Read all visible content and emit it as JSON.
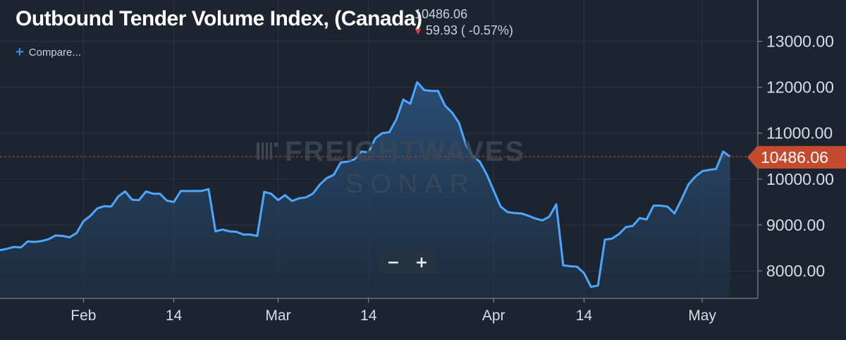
{
  "header": {
    "title": "Outbound Tender Volume Index, (Canada)",
    "price": "10486.06",
    "change": "59.93 ( -0.57%)",
    "change_direction_icon": "down-arrow-icon",
    "change_color": "#e04040"
  },
  "compare": {
    "icon": "plus-icon",
    "label": "Compare..."
  },
  "zoom": {
    "minus_label": "−",
    "plus_label": "+"
  },
  "watermark": {
    "line1": "FREIGHTWAVES",
    "line2": "SONAR"
  },
  "colors": {
    "line": "#4da6ff",
    "background": "#1c252f",
    "price_tag": "#c44a2f",
    "reference_line": "#c44a2f"
  },
  "chart_data": {
    "type": "area",
    "title": "Outbound Tender Volume Index, (Canada)",
    "x_tick_labels": [
      "Feb",
      "14",
      "Mar",
      "14",
      "Apr",
      "14",
      "May"
    ],
    "y_tick_labels": [
      "8000.00",
      "9000.00",
      "10000.00",
      "11000.00",
      "12000.00",
      "13000.00"
    ],
    "y_ticks": [
      8000,
      9000,
      10000,
      11000,
      12000,
      13000
    ],
    "ylim": [
      7400,
      13900
    ],
    "x_range": [
      "2019-01-20",
      "2019-05-09"
    ],
    "last_value": 10486.06,
    "last_value_label": "10486.06",
    "grid": true,
    "series": [
      {
        "values": [
          {
            "x": "2019-01-20",
            "y": 8450
          },
          {
            "x": "2019-01-21",
            "y": 8480
          },
          {
            "x": "2019-01-22",
            "y": 8520
          },
          {
            "x": "2019-01-23",
            "y": 8510
          },
          {
            "x": "2019-01-24",
            "y": 8640
          },
          {
            "x": "2019-01-25",
            "y": 8630
          },
          {
            "x": "2019-01-26",
            "y": 8650
          },
          {
            "x": "2019-01-27",
            "y": 8690
          },
          {
            "x": "2019-01-28",
            "y": 8770
          },
          {
            "x": "2019-01-29",
            "y": 8760
          },
          {
            "x": "2019-01-30",
            "y": 8730
          },
          {
            "x": "2019-01-31",
            "y": 8820
          },
          {
            "x": "2019-02-01",
            "y": 9080
          },
          {
            "x": "2019-02-02",
            "y": 9200
          },
          {
            "x": "2019-02-03",
            "y": 9360
          },
          {
            "x": "2019-02-04",
            "y": 9410
          },
          {
            "x": "2019-02-05",
            "y": 9400
          },
          {
            "x": "2019-02-06",
            "y": 9620
          },
          {
            "x": "2019-02-07",
            "y": 9730
          },
          {
            "x": "2019-02-08",
            "y": 9550
          },
          {
            "x": "2019-02-09",
            "y": 9540
          },
          {
            "x": "2019-02-10",
            "y": 9730
          },
          {
            "x": "2019-02-11",
            "y": 9680
          },
          {
            "x": "2019-02-12",
            "y": 9680
          },
          {
            "x": "2019-02-13",
            "y": 9530
          },
          {
            "x": "2019-02-14",
            "y": 9500
          },
          {
            "x": "2019-02-15",
            "y": 9740
          },
          {
            "x": "2019-02-16",
            "y": 9740
          },
          {
            "x": "2019-02-17",
            "y": 9740
          },
          {
            "x": "2019-02-18",
            "y": 9740
          },
          {
            "x": "2019-02-19",
            "y": 9780
          },
          {
            "x": "2019-02-20",
            "y": 8860
          },
          {
            "x": "2019-02-21",
            "y": 8900
          },
          {
            "x": "2019-02-22",
            "y": 8860
          },
          {
            "x": "2019-02-23",
            "y": 8850
          },
          {
            "x": "2019-02-24",
            "y": 8790
          },
          {
            "x": "2019-02-25",
            "y": 8790
          },
          {
            "x": "2019-02-26",
            "y": 8760
          },
          {
            "x": "2019-02-27",
            "y": 9720
          },
          {
            "x": "2019-02-28",
            "y": 9680
          },
          {
            "x": "2019-03-01",
            "y": 9540
          },
          {
            "x": "2019-03-02",
            "y": 9650
          },
          {
            "x": "2019-03-03",
            "y": 9520
          },
          {
            "x": "2019-03-04",
            "y": 9580
          },
          {
            "x": "2019-03-05",
            "y": 9600
          },
          {
            "x": "2019-03-06",
            "y": 9680
          },
          {
            "x": "2019-03-07",
            "y": 9880
          },
          {
            "x": "2019-03-08",
            "y": 10020
          },
          {
            "x": "2019-03-09",
            "y": 10090
          },
          {
            "x": "2019-03-10",
            "y": 10360
          },
          {
            "x": "2019-03-11",
            "y": 10380
          },
          {
            "x": "2019-03-12",
            "y": 10430
          },
          {
            "x": "2019-03-13",
            "y": 10600
          },
          {
            "x": "2019-03-14",
            "y": 10580
          },
          {
            "x": "2019-03-15",
            "y": 10890
          },
          {
            "x": "2019-03-16",
            "y": 11000
          },
          {
            "x": "2019-03-17",
            "y": 11020
          },
          {
            "x": "2019-03-18",
            "y": 11300
          },
          {
            "x": "2019-03-19",
            "y": 11730
          },
          {
            "x": "2019-03-20",
            "y": 11640
          },
          {
            "x": "2019-03-21",
            "y": 12110
          },
          {
            "x": "2019-03-22",
            "y": 11940
          },
          {
            "x": "2019-03-23",
            "y": 11920
          },
          {
            "x": "2019-03-24",
            "y": 11920
          },
          {
            "x": "2019-03-25",
            "y": 11600
          },
          {
            "x": "2019-03-26",
            "y": 11450
          },
          {
            "x": "2019-03-27",
            "y": 11230
          },
          {
            "x": "2019-03-28",
            "y": 10750
          },
          {
            "x": "2019-03-29",
            "y": 10500
          },
          {
            "x": "2019-03-30",
            "y": 10380
          },
          {
            "x": "2019-03-31",
            "y": 10100
          },
          {
            "x": "2019-04-01",
            "y": 9750
          },
          {
            "x": "2019-04-02",
            "y": 9400
          },
          {
            "x": "2019-04-03",
            "y": 9280
          },
          {
            "x": "2019-04-04",
            "y": 9260
          },
          {
            "x": "2019-04-05",
            "y": 9250
          },
          {
            "x": "2019-04-06",
            "y": 9200
          },
          {
            "x": "2019-04-07",
            "y": 9140
          },
          {
            "x": "2019-04-08",
            "y": 9100
          },
          {
            "x": "2019-04-09",
            "y": 9180
          },
          {
            "x": "2019-04-10",
            "y": 9450
          },
          {
            "x": "2019-04-11",
            "y": 8120
          },
          {
            "x": "2019-04-12",
            "y": 8100
          },
          {
            "x": "2019-04-13",
            "y": 8090
          },
          {
            "x": "2019-04-14",
            "y": 7950
          },
          {
            "x": "2019-04-15",
            "y": 7650
          },
          {
            "x": "2019-04-16",
            "y": 7680
          },
          {
            "x": "2019-04-17",
            "y": 8680
          },
          {
            "x": "2019-04-18",
            "y": 8700
          },
          {
            "x": "2019-04-19",
            "y": 8800
          },
          {
            "x": "2019-04-20",
            "y": 8950
          },
          {
            "x": "2019-04-21",
            "y": 8980
          },
          {
            "x": "2019-04-22",
            "y": 9150
          },
          {
            "x": "2019-04-23",
            "y": 9120
          },
          {
            "x": "2019-04-24",
            "y": 9420
          },
          {
            "x": "2019-04-25",
            "y": 9420
          },
          {
            "x": "2019-04-26",
            "y": 9400
          },
          {
            "x": "2019-04-27",
            "y": 9250
          },
          {
            "x": "2019-04-28",
            "y": 9550
          },
          {
            "x": "2019-04-29",
            "y": 9880
          },
          {
            "x": "2019-04-30",
            "y": 10050
          },
          {
            "x": "2019-05-01",
            "y": 10170
          },
          {
            "x": "2019-05-02",
            "y": 10200
          },
          {
            "x": "2019-05-03",
            "y": 10220
          },
          {
            "x": "2019-05-04",
            "y": 10600
          },
          {
            "x": "2019-05-05",
            "y": 10486.06
          }
        ]
      }
    ],
    "x_tick_dates": [
      "2019-02-01",
      "2019-02-14",
      "2019-03-01",
      "2019-03-14",
      "2019-04-01",
      "2019-04-14",
      "2019-05-01"
    ]
  }
}
